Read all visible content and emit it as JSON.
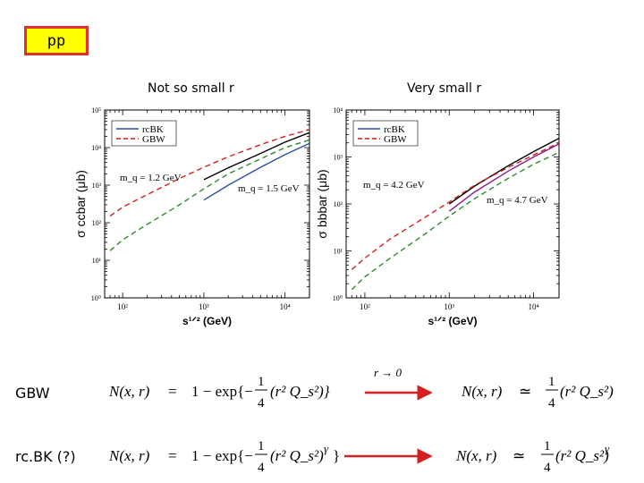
{
  "badge": "pp",
  "headings": {
    "left": "Not so small r",
    "right": "Very small r"
  },
  "colors": {
    "rcbk": "#2c4fa0",
    "gbw": "#cc2020",
    "black": "#000000",
    "green": "#2e8b2e",
    "purple": "#8b1c8b",
    "arrow": "#d42020"
  },
  "chart_data": [
    {
      "type": "line",
      "title": "",
      "xlabel": "s^{1/2} (GeV)",
      "ylabel": "σ ccbar (μb)",
      "xscale": "log",
      "yscale": "log",
      "xlim": [
        60,
        20000
      ],
      "ylim": [
        1,
        100000
      ],
      "xticks": [
        100,
        1000,
        10000
      ],
      "xtick_labels": [
        "10²",
        "10³",
        "10⁴"
      ],
      "yticks": [
        1,
        10,
        100,
        1000,
        10000,
        100000
      ],
      "ytick_labels": [
        "10⁰",
        "10¹",
        "10²",
        "10³",
        "10⁴",
        "10⁵"
      ],
      "legend": {
        "position": "top-left",
        "entries": [
          "rcBK",
          "GBW"
        ]
      },
      "annotations": [
        "m_q = 1.2 GeV",
        "m_q = 1.5 GeV"
      ],
      "series": [
        {
          "name": "GBW",
          "style": "dashed",
          "color": "#cc2020",
          "x": [
            70,
            100,
            200,
            500,
            1000,
            2000,
            5000,
            10000,
            20000
          ],
          "y": [
            150,
            260,
            560,
            1500,
            3000,
            5700,
            12000,
            20000,
            30000
          ]
        },
        {
          "name": "",
          "style": "solid",
          "color": "#000000",
          "x": [
            1000,
            2000,
            5000,
            10000,
            20000
          ],
          "y": [
            1400,
            2900,
            7000,
            14000,
            25000
          ]
        },
        {
          "name": "GBW",
          "style": "dashed",
          "color": "#2e8b2e",
          "x": [
            70,
            100,
            200,
            500,
            1000,
            2000,
            5000,
            10000,
            20000
          ],
          "y": [
            18,
            35,
            90,
            300,
            800,
            2000,
            5000,
            10000,
            16000
          ]
        },
        {
          "name": "rcBK",
          "style": "solid",
          "color": "#2c4fa0",
          "x": [
            1000,
            2000,
            5000,
            10000,
            20000
          ],
          "y": [
            400,
            1000,
            3000,
            6500,
            13000
          ]
        }
      ]
    },
    {
      "type": "line",
      "title": "",
      "xlabel": "s^{1/2} (GeV)",
      "ylabel": "σ bbbar (μb)",
      "xscale": "log",
      "yscale": "log",
      "xlim": [
        60,
        20000
      ],
      "ylim": [
        1,
        10000
      ],
      "xticks": [
        100,
        1000,
        10000
      ],
      "xtick_labels": [
        "10²",
        "10³",
        "10⁴"
      ],
      "yticks": [
        1,
        10,
        100,
        1000,
        10000
      ],
      "ytick_labels": [
        "10⁰",
        "10¹",
        "10²",
        "10³",
        "10⁴"
      ],
      "legend": {
        "position": "top-left",
        "entries": [
          "rcBK",
          "GBW"
        ]
      },
      "annotations": [
        "m_q = 4.2 GeV",
        "m_q = 4.7 GeV"
      ],
      "series": [
        {
          "name": "",
          "style": "solid",
          "color": "#000000",
          "x": [
            1000,
            2000,
            5000,
            10000,
            20000
          ],
          "y": [
            100,
            240,
            650,
            1300,
            2500
          ]
        },
        {
          "name": "GBW",
          "style": "dashed",
          "color": "#cc2020",
          "x": [
            70,
            100,
            200,
            500,
            1000,
            2000,
            5000,
            10000,
            20000
          ],
          "y": [
            4,
            7,
            18,
            50,
            110,
            250,
            600,
            1100,
            2000
          ]
        },
        {
          "name": "rcBK",
          "style": "solid",
          "color": "#8b1c8b",
          "x": [
            1000,
            2000,
            5000,
            10000,
            20000
          ],
          "y": [
            70,
            180,
            500,
            1000,
            1900
          ]
        },
        {
          "name": "GBW",
          "style": "dashed",
          "color": "#2e8b2e",
          "x": [
            70,
            100,
            200,
            500,
            1000,
            2000,
            5000,
            10000,
            20000
          ],
          "y": [
            1.5,
            2.8,
            7,
            22,
            55,
            130,
            350,
            700,
            1250
          ]
        }
      ]
    }
  ],
  "equations": {
    "gbw": {
      "label": "GBW",
      "lhs": "N(x, r)",
      "op": "=",
      "rhs_pre": "1 − exp{−",
      "frac_num": "1",
      "frac_den": "4",
      "rhs_post": "(r² Q_s²)}",
      "limit_label": "r → 0",
      "lim_lhs": "N(x, r)",
      "lim_op": "≃",
      "lim_num": "1",
      "lim_den": "4",
      "lim_post": "(r² Q_s²)"
    },
    "rcbk": {
      "label": "rc.BK (?)",
      "lhs": "N(x, r)",
      "op": "=",
      "rhs_pre": "1 − exp{−",
      "frac_num": "1",
      "frac_den": "4",
      "rhs_post": "(r² Q_s²)",
      "gamma": "γ",
      "close": "}",
      "lim_lhs": "N(x, r)",
      "lim_op": "≃",
      "lim_num": "1",
      "lim_den": "4",
      "lim_post": "(r² Q_s²)",
      "lim_gamma": "γ"
    }
  }
}
